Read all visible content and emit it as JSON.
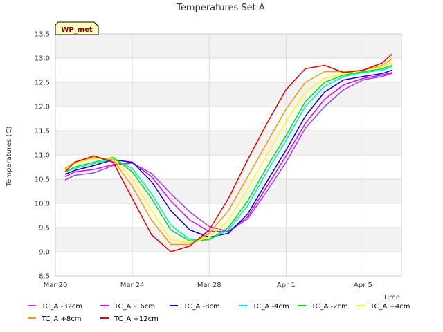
{
  "chart_data": {
    "type": "line",
    "title": "Temperatures Set A",
    "xlabel": "Time",
    "ylabel": "Temperatures (C)",
    "badge": "WP_met",
    "x_range": [
      "2023-03-20",
      "2023-04-07"
    ],
    "ylim": [
      8.5,
      13.5
    ],
    "yticks": [
      "8.5",
      "9.0",
      "9.5",
      "10.0",
      "10.5",
      "11.0",
      "11.5",
      "12.0",
      "12.5",
      "13.0",
      "13.5"
    ],
    "xticks": [
      {
        "label": "Mar 20",
        "date": "2023-03-20"
      },
      {
        "label": "Mar 24",
        "date": "2023-03-24"
      },
      {
        "label": "Mar 28",
        "date": "2023-03-28"
      },
      {
        "label": "Apr 1",
        "date": "2023-04-01"
      },
      {
        "label": "Apr 5",
        "date": "2023-04-05"
      }
    ],
    "grid": true,
    "legend_position": "bottom",
    "x": [
      "2023-03-20T12:00",
      "2023-03-21T00:00",
      "2023-03-22T00:00",
      "2023-03-23T00:00",
      "2023-03-24T00:00",
      "2023-03-25T00:00",
      "2023-03-26T00:00",
      "2023-03-27T00:00",
      "2023-03-28T00:00",
      "2023-03-29T00:00",
      "2023-03-30T00:00",
      "2023-03-31T00:00",
      "2023-04-01T00:00",
      "2023-04-02T00:00",
      "2023-04-03T00:00",
      "2023-04-04T00:00",
      "2023-04-05T00:00",
      "2023-04-06T00:00",
      "2023-04-06T12:00"
    ],
    "series": [
      {
        "name": "TC_A -32cm",
        "color": "#9b42f5",
        "values": [
          10.48,
          10.58,
          10.63,
          10.78,
          10.83,
          10.62,
          10.2,
          9.82,
          9.52,
          9.42,
          9.68,
          10.25,
          10.85,
          11.55,
          12.0,
          12.35,
          12.55,
          12.62,
          12.68
        ]
      },
      {
        "name": "TC_A -16cm",
        "color": "#e600e6",
        "values": [
          10.55,
          10.65,
          10.7,
          10.8,
          10.85,
          10.55,
          10.05,
          9.65,
          9.42,
          9.42,
          9.72,
          10.35,
          10.98,
          11.65,
          12.15,
          12.45,
          12.58,
          12.65,
          12.7
        ]
      },
      {
        "name": "TC_A -8cm",
        "color": "#0000cc",
        "values": [
          10.6,
          10.68,
          10.78,
          10.9,
          10.85,
          10.45,
          9.85,
          9.45,
          9.3,
          9.38,
          9.78,
          10.45,
          11.1,
          11.8,
          12.3,
          12.55,
          12.62,
          12.68,
          12.75
        ]
      },
      {
        "name": "TC_A -4cm",
        "color": "#00e5e5",
        "values": [
          10.65,
          10.72,
          10.82,
          10.92,
          10.72,
          10.2,
          9.55,
          9.25,
          9.25,
          9.45,
          9.95,
          10.65,
          11.3,
          12.0,
          12.42,
          12.62,
          12.7,
          12.75,
          12.82
        ]
      },
      {
        "name": "TC_A -2cm",
        "color": "#00e600",
        "values": [
          10.65,
          10.75,
          10.85,
          10.95,
          10.65,
          10.1,
          9.45,
          9.22,
          9.25,
          9.5,
          10.05,
          10.75,
          11.4,
          12.1,
          12.5,
          12.65,
          12.72,
          12.78,
          12.85
        ]
      },
      {
        "name": "TC_A +4cm",
        "color": "#ffff00",
        "values": [
          10.7,
          10.82,
          10.92,
          10.92,
          10.5,
          9.85,
          9.25,
          9.18,
          9.3,
          9.65,
          10.3,
          11.0,
          11.7,
          12.3,
          12.58,
          12.68,
          12.75,
          12.82,
          12.92
        ]
      },
      {
        "name": "TC_A +8cm",
        "color": "#ff9900",
        "values": [
          10.72,
          10.85,
          10.95,
          10.9,
          10.35,
          9.65,
          9.15,
          9.15,
          9.38,
          9.85,
          10.55,
          11.25,
          11.95,
          12.5,
          12.72,
          12.72,
          12.75,
          12.85,
          12.98
        ]
      },
      {
        "name": "TC_A +12cm",
        "color": "#e60000",
        "values": [
          10.65,
          10.85,
          10.98,
          10.85,
          10.1,
          9.35,
          9.0,
          9.12,
          9.45,
          10.1,
          10.9,
          11.65,
          12.35,
          12.78,
          12.85,
          12.7,
          12.75,
          12.9,
          13.08
        ]
      }
    ]
  }
}
